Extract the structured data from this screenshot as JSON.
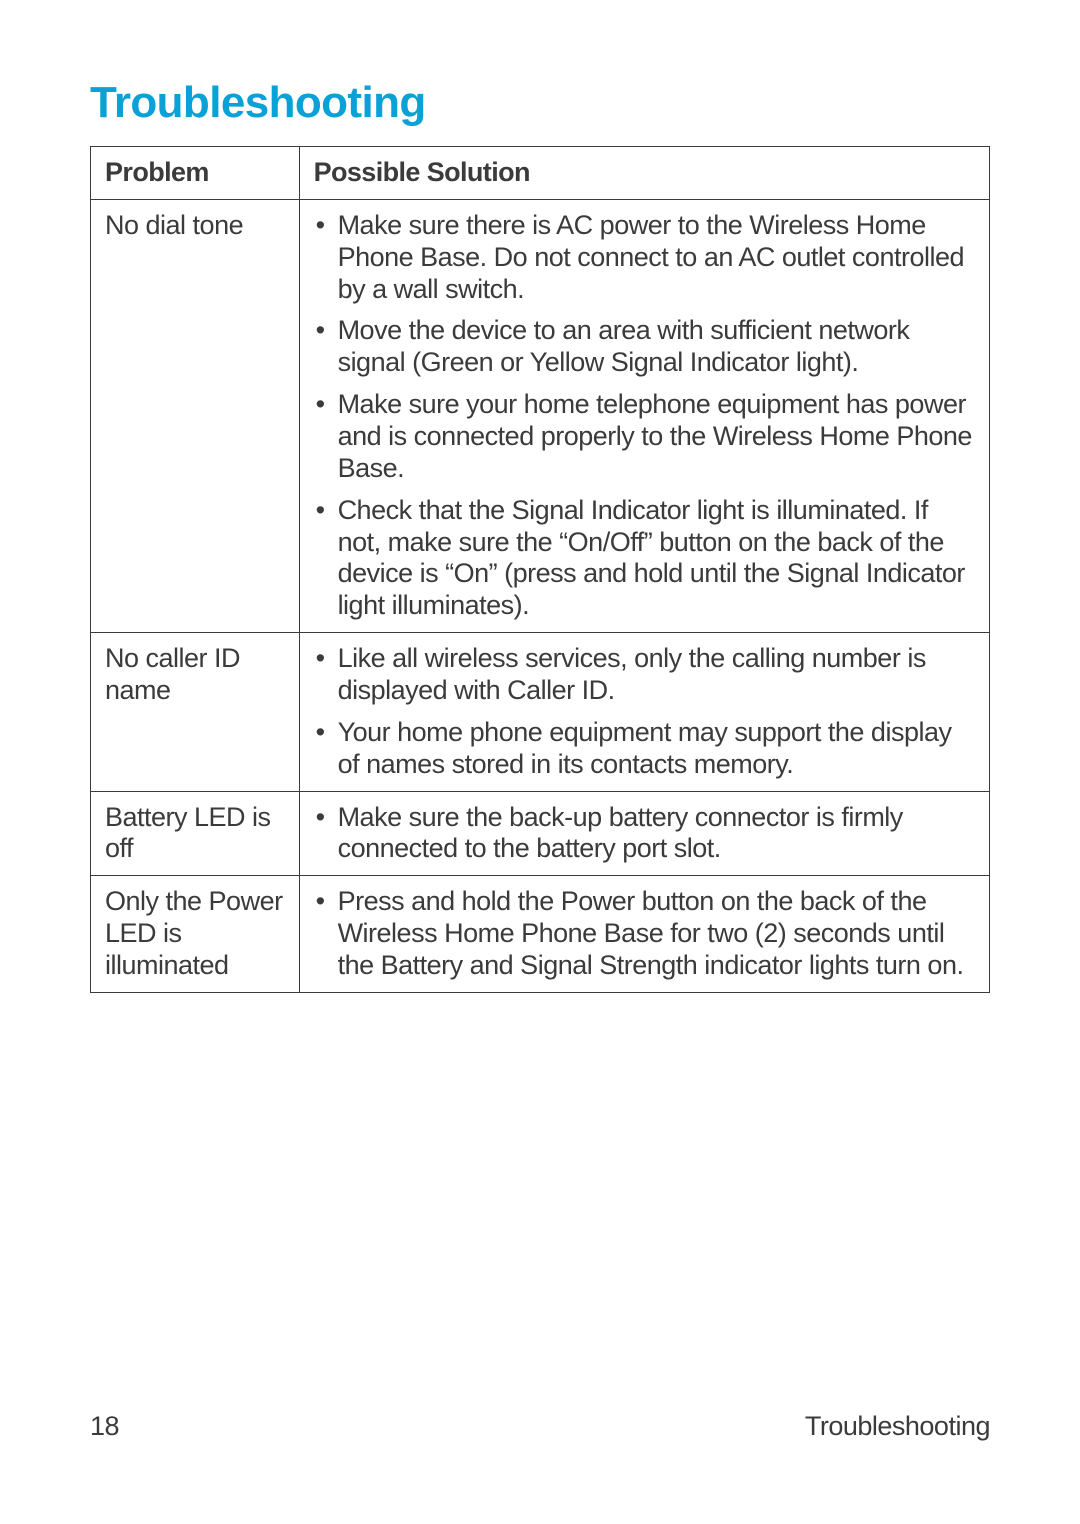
{
  "title": {
    "text": "Troubleshooting",
    "color": "#0aa1d6"
  },
  "table": {
    "headers": {
      "problem": "Problem",
      "solution": "Possible Solution"
    },
    "rows": [
      {
        "problem": "No dial tone",
        "solutions": [
          "Make sure there is AC power to the Wireless Home Phone Base. Do not connect to an AC outlet controlled by a wall switch.",
          "Move the device to an area with sufficient network signal (Green or Yellow Signal Indicator light).",
          "Make sure your home telephone equipment has power and is connected properly to the Wireless Home Phone Base.",
          "Check that the Signal Indicator light is illuminated. If not, make sure the “On/Off” button on the back of the device is “On” (press and hold until the Signal Indicator light illuminates)."
        ]
      },
      {
        "problem": "No caller ID name",
        "solutions": [
          "Like all wireless services, only the calling number is displayed with Caller ID.",
          "Your home phone equipment may support the display of names stored in its contacts memory."
        ]
      },
      {
        "problem": "Battery LED is off",
        "solutions": [
          "Make sure the back-up battery connector is firmly connected to the battery port slot."
        ]
      },
      {
        "problem": "Only the Power LED is illuminated",
        "solutions": [
          "Press and hold the Power button on the back of the Wireless Home Phone Base for two (2) seconds until the Battery and Signal Strength indicator lights turn on."
        ]
      }
    ]
  },
  "footer": {
    "page_number": "18",
    "section": "Troubleshooting"
  }
}
